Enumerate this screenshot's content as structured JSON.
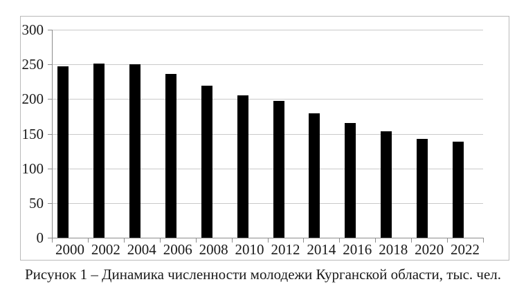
{
  "caption": "Рисунок 1 – Динамика численности молодежи Курганской области, тыс. чел.",
  "chart_data": {
    "type": "bar",
    "title": "",
    "xlabel": "",
    "ylabel": "",
    "categories": [
      "2000",
      "2002",
      "2004",
      "2006",
      "2008",
      "2010",
      "2012",
      "2014",
      "2016",
      "2018",
      "2020",
      "2022"
    ],
    "values": [
      247,
      251,
      250,
      236,
      219,
      205,
      197,
      179,
      165,
      153,
      143,
      139
    ],
    "ylim": [
      0,
      300
    ],
    "ytick_step": 50,
    "ytick_labels": [
      "0",
      "50",
      "100",
      "150",
      "200",
      "250",
      "300"
    ],
    "grid": true,
    "legend_position": "none",
    "bar_color": "#000000",
    "gridline_color": "#c9c9c9",
    "axis_color": "#8c8c8c",
    "frame_color": "#b9b9b9",
    "text_color": "#1a1a1a"
  }
}
